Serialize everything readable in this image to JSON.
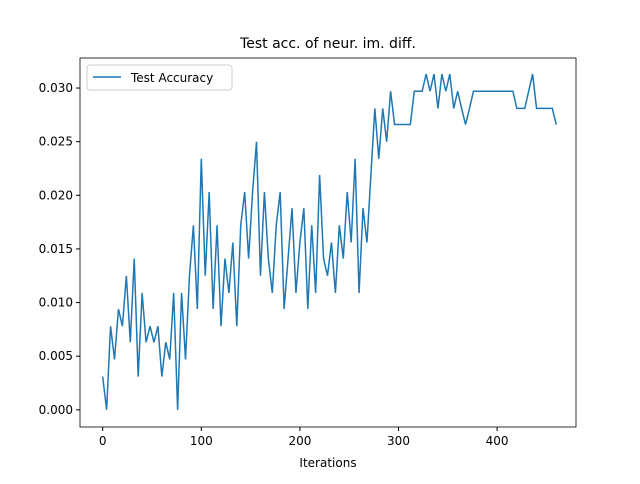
{
  "chart_data": {
    "type": "line",
    "title": "Test acc. of neur. im. diff.",
    "x_label": "Iterations",
    "x": [
      0,
      4,
      8,
      12,
      16,
      20,
      24,
      28,
      32,
      36,
      40,
      44,
      48,
      52,
      56,
      60,
      64,
      68,
      72,
      76,
      80,
      84,
      88,
      92,
      96,
      100,
      104,
      108,
      112,
      116,
      120,
      124,
      128,
      132,
      136,
      140,
      144,
      148,
      152,
      156,
      160,
      164,
      168,
      172,
      176,
      180,
      184,
      188,
      192,
      196,
      200,
      204,
      208,
      212,
      216,
      220,
      224,
      228,
      232,
      236,
      240,
      244,
      248,
      252,
      256,
      260,
      264,
      268,
      272,
      276,
      280,
      284,
      288,
      292,
      296,
      300,
      304,
      308,
      312,
      316,
      320,
      324,
      328,
      332,
      336,
      340,
      344,
      348,
      352,
      356,
      360,
      364,
      368,
      372,
      376,
      380,
      384,
      388,
      392,
      396,
      400,
      404,
      408,
      412,
      416,
      420,
      424,
      428,
      432,
      436,
      440,
      444,
      448,
      452,
      456,
      460
    ],
    "series": [
      {
        "name": "Test Accuracy",
        "color": "#1f77b4",
        "values": [
          0.0031,
          0,
          0.0078,
          0.0047,
          0.0094,
          0.0078,
          0.0125,
          0.0063,
          0.0141,
          0.0031,
          0.0109,
          0.0063,
          0.0078,
          0.0063,
          0.0078,
          0.0031,
          0.0063,
          0.0047,
          0.0109,
          0,
          0.0109,
          0.0047,
          0.0125,
          0.0172,
          0.0094,
          0.0234,
          0.0125,
          0.0203,
          0.0094,
          0.0172,
          0.0078,
          0.0141,
          0.0109,
          0.0156,
          0.0078,
          0.0172,
          0.0203,
          0.0141,
          0.0203,
          0.025,
          0.0125,
          0.0203,
          0.0141,
          0.0109,
          0.0172,
          0.0203,
          0.0094,
          0.0141,
          0.0188,
          0.0109,
          0.0156,
          0.0188,
          0.0094,
          0.0172,
          0.0109,
          0.0219,
          0.0141,
          0.0125,
          0.0156,
          0.0109,
          0.0172,
          0.0141,
          0.0203,
          0.0156,
          0.0234,
          0.0109,
          0.0188,
          0.0156,
          0.0219,
          0.0281,
          0.0234,
          0.0281,
          0.025,
          0.0297,
          0.0266,
          0.0266,
          0.0266,
          0.0266,
          0.0266,
          0.0297,
          0.0297,
          0.0297,
          0.0313,
          0.0297,
          0.0313,
          0.0281,
          0.0313,
          0.0297,
          0.0313,
          0.0281,
          0.0297,
          0.0281,
          0.0266,
          0.0281,
          0.0297,
          0.0297,
          0.0297,
          0.0297,
          0.0297,
          0.0297,
          0.0297,
          0.0297,
          0.0297,
          0.0297,
          0.0297,
          0.0281,
          0.0281,
          0.0281,
          0.0297,
          0.0313,
          0.0281,
          0.0281,
          0.0281,
          0.0281,
          0.0281,
          0.0266
        ]
      }
    ],
    "xlim": [
      -23,
      480
    ],
    "xticks": [
      0,
      100,
      200,
      300,
      400
    ],
    "ylim": [
      -0.0016,
      0.0328
    ],
    "yticks": [
      {
        "value": 0,
        "label": "0.000"
      },
      {
        "value": 0.005,
        "label": "0.005"
      },
      {
        "value": 0.01,
        "label": "0.010"
      },
      {
        "value": 0.015,
        "label": "0.015"
      },
      {
        "value": 0.02,
        "label": "0.020"
      },
      {
        "value": 0.025,
        "label": "0.025"
      },
      {
        "value": 0.03,
        "label": "0.030"
      }
    ],
    "legend": "upper left",
    "grid": false
  }
}
